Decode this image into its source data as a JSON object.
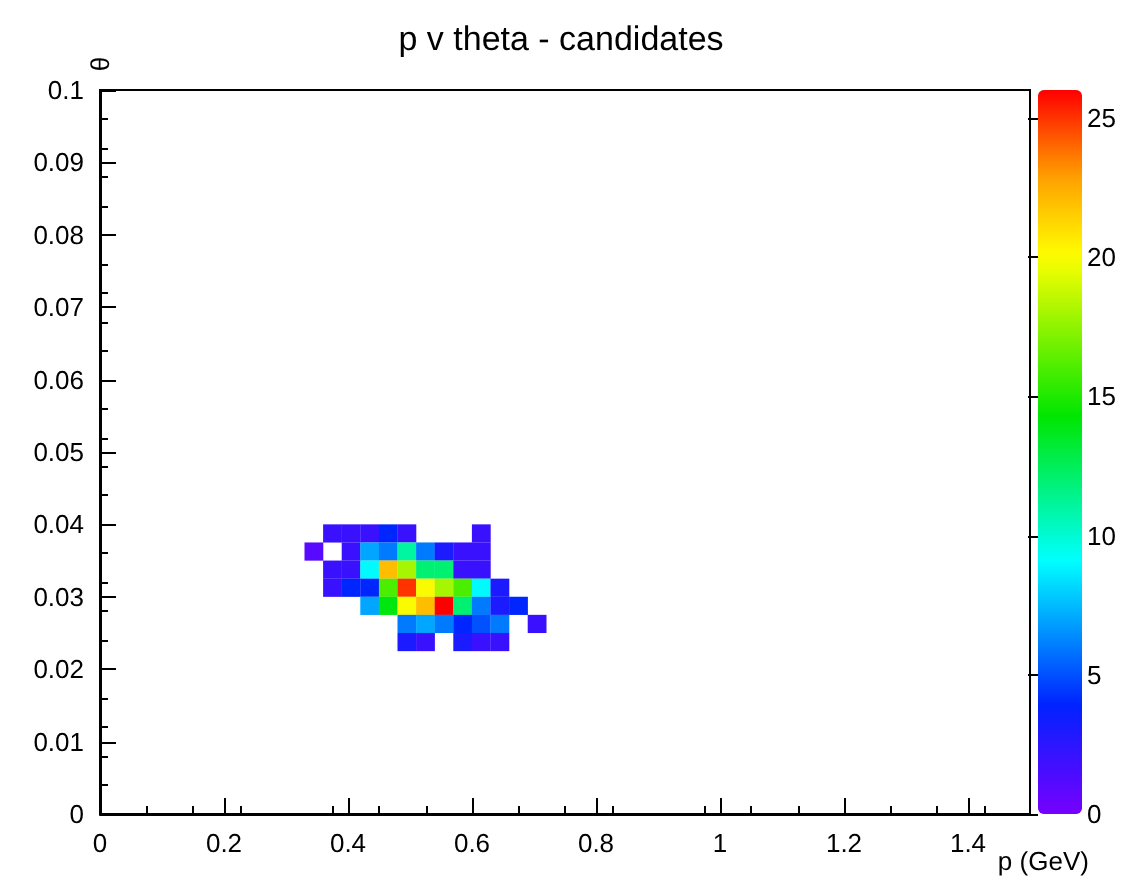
{
  "chart_data": {
    "type": "scatter",
    "title": "p v theta - candidates",
    "xlabel": "p (GeV)",
    "ylabel": "θ",
    "marker": "square",
    "x": [
      0.375,
      0.405,
      0.435,
      0.465,
      0.495,
      0.615,
      0.345,
      0.405,
      0.435,
      0.465,
      0.495,
      0.525,
      0.555,
      0.585,
      0.615,
      0.375,
      0.405,
      0.435,
      0.465,
      0.495,
      0.525,
      0.555,
      0.585,
      0.615,
      0.375,
      0.405,
      0.435,
      0.465,
      0.495,
      0.525,
      0.555,
      0.585,
      0.615,
      0.645,
      0.435,
      0.465,
      0.495,
      0.525,
      0.555,
      0.585,
      0.615,
      0.645,
      0.675,
      0.495,
      0.525,
      0.555,
      0.585,
      0.615,
      0.645,
      0.705,
      0.495,
      0.525,
      0.585,
      0.615,
      0.645
    ],
    "values": [
      0.03875,
      0.03875,
      0.03875,
      0.03875,
      0.03875,
      0.03875,
      0.03625,
      0.03625,
      0.03625,
      0.03625,
      0.03625,
      0.03625,
      0.03625,
      0.03625,
      0.03625,
      0.03375,
      0.03375,
      0.03375,
      0.03375,
      0.03375,
      0.03375,
      0.03375,
      0.03375,
      0.03375,
      0.03125,
      0.03125,
      0.03125,
      0.03125,
      0.03125,
      0.03125,
      0.03125,
      0.03125,
      0.03125,
      0.03125,
      0.02875,
      0.02875,
      0.02875,
      0.02875,
      0.02875,
      0.02875,
      0.02875,
      0.02875,
      0.02875,
      0.02625,
      0.02625,
      0.02625,
      0.02625,
      0.02625,
      0.02625,
      0.02625,
      0.02375,
      0.02375,
      0.02375,
      0.02375,
      0.02375
    ],
    "cvalues": [
      2,
      2,
      2,
      4,
      2,
      2,
      1,
      2,
      7,
      6,
      11,
      6,
      3,
      2,
      2,
      2,
      2,
      9,
      22,
      18,
      12,
      12,
      2,
      2,
      2,
      4,
      4,
      16,
      25,
      20,
      18,
      16,
      9,
      3,
      7,
      14,
      20,
      22,
      26,
      12,
      6,
      3,
      4,
      6,
      7,
      6,
      4,
      5,
      6,
      2,
      3,
      2,
      3,
      2,
      2
    ],
    "xlim": [
      0,
      1.5
    ],
    "xticks": [
      0,
      0.2,
      0.4,
      0.6,
      0.8,
      1,
      1.2,
      1.4
    ],
    "ylim": [
      0,
      0.1
    ],
    "yticks": [
      0,
      0.01,
      0.02,
      0.03,
      0.04,
      0.05,
      0.06,
      0.07,
      0.08,
      0.09,
      0.1
    ],
    "clim": [
      0,
      26
    ],
    "cticks": [
      0,
      5,
      10,
      15,
      20,
      25
    ],
    "grid": false
  }
}
